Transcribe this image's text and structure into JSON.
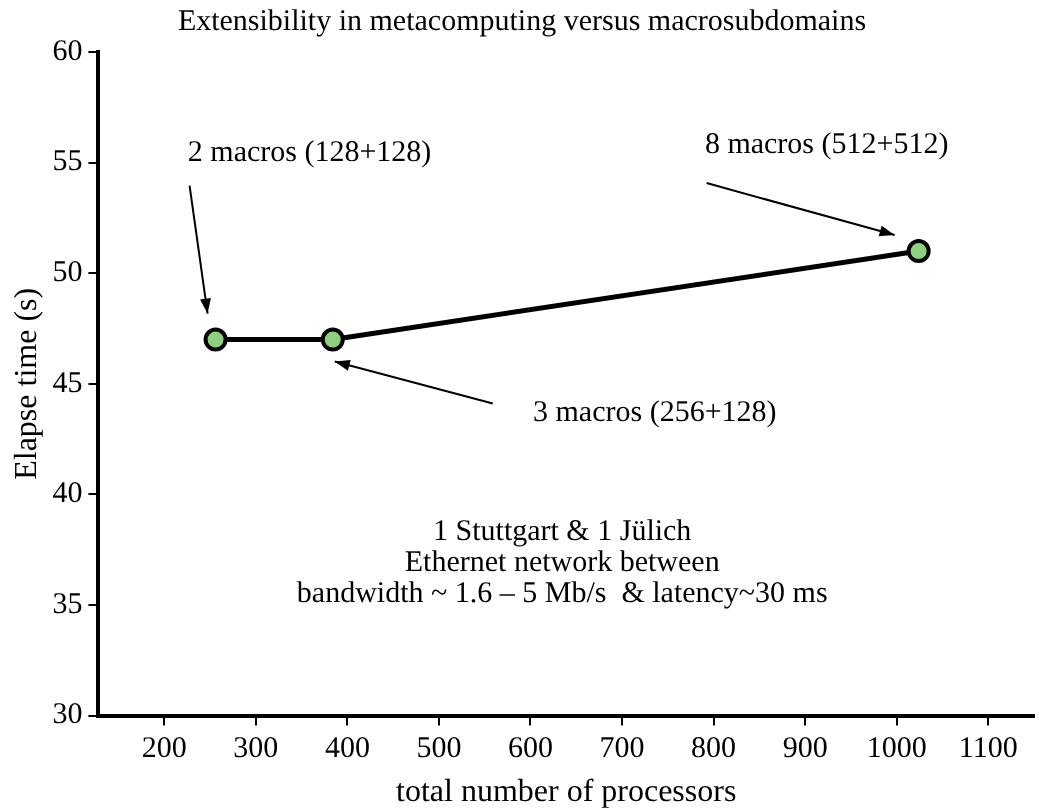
{
  "chart_data": {
    "type": "line",
    "title": "Extensibility in metacomputing versus macrosubdomains",
    "xlabel": "total number of processors",
    "ylabel": "Elapse time (s)",
    "x": [
      256,
      384,
      1024
    ],
    "series": [
      {
        "color": "#000000",
        "values": [
          47,
          47,
          51
        ]
      }
    ],
    "marker": "circle",
    "line_style": "solid",
    "grid": false,
    "legend": false,
    "xlim": [
      128,
      1150
    ],
    "xticks": [
      200,
      300,
      400,
      500,
      600,
      700,
      800,
      900,
      1000,
      1100
    ],
    "ylim": [
      30,
      60
    ],
    "yticks": [
      30,
      35,
      40,
      45,
      50,
      55,
      60
    ],
    "annotations": [
      "2 macros (128+128)",
      "3 macros (256+128)",
      "8 macros (512+512)",
      "1 Stuttgart & 1 Jülich",
      "Ethernet network between",
      "bandwidth ~ 1.6 – 5 Mb/s  & latency~30 ms"
    ]
  }
}
